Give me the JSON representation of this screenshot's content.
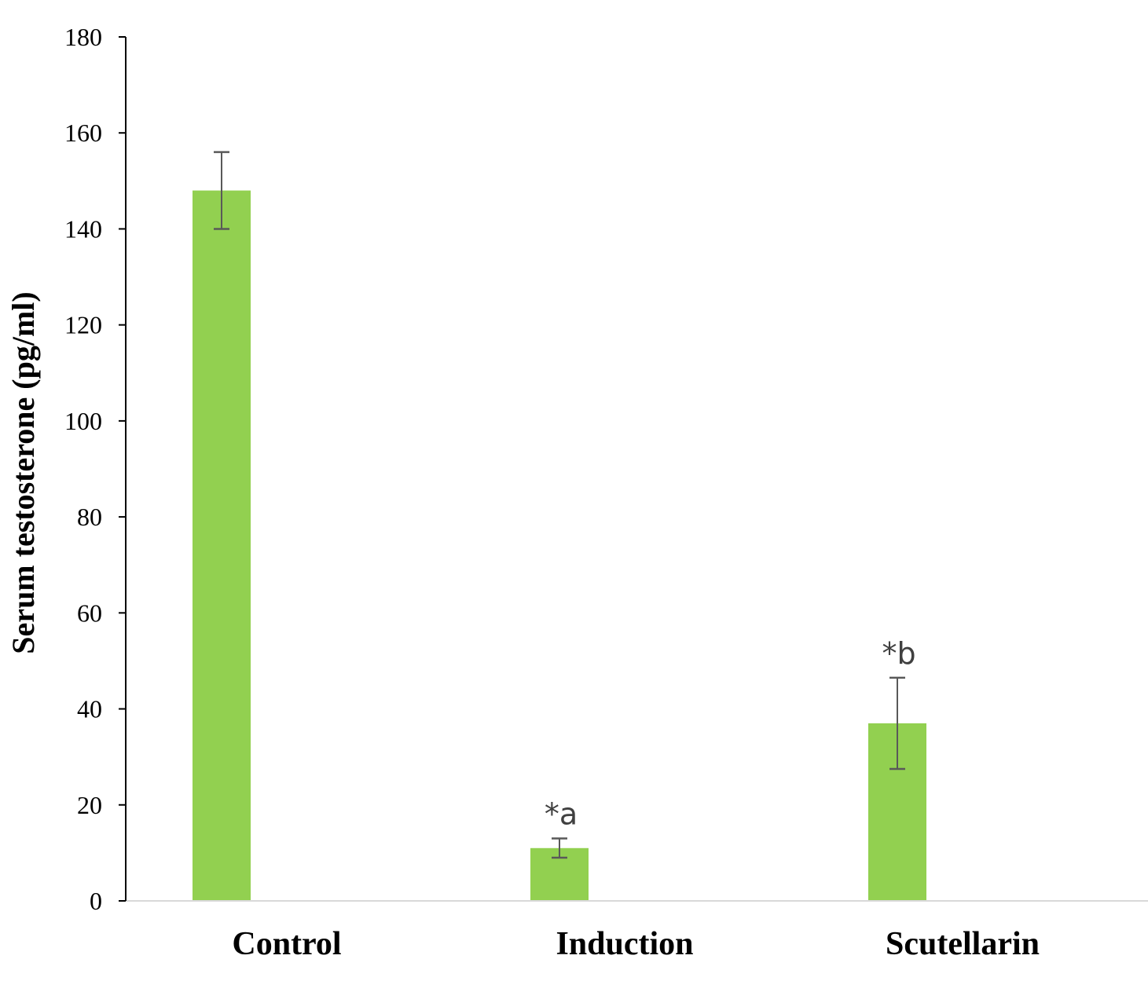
{
  "chart_data": {
    "type": "bar",
    "categories": [
      "Control",
      "Induction",
      "Scutellarin"
    ],
    "values": [
      148,
      11,
      37
    ],
    "errors": [
      8,
      2,
      9.5
    ],
    "annotations": [
      "",
      "*a",
      "*b"
    ],
    "xlabel": "",
    "ylabel": "Serum testosterone (pg/ml)",
    "ylim": [
      0,
      180
    ],
    "yticks": [
      0,
      20,
      40,
      60,
      80,
      100,
      120,
      140,
      160,
      180
    ],
    "grid": false,
    "legend": "none",
    "colors": {
      "bar": "#92d050",
      "error_bar": "#595959",
      "axis": "#000000",
      "baseline": "#d9d9d9",
      "annotation": "#404040"
    }
  }
}
